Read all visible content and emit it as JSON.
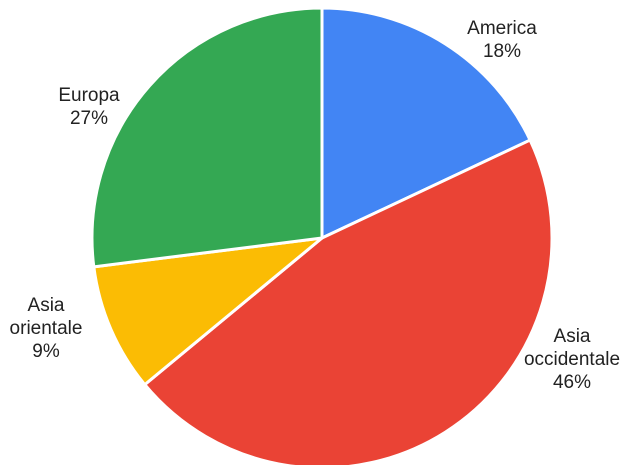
{
  "chart_data": {
    "type": "pie",
    "title": "",
    "start_angle_deg": 0,
    "direction": "clockwise",
    "slices": [
      {
        "label": "America",
        "label_lines": [
          "America"
        ],
        "value": 18,
        "value_text": "18%",
        "color": "#4285F4"
      },
      {
        "label": "Asia occidentale",
        "label_lines": [
          "Asia",
          "occidentale"
        ],
        "value": 46,
        "value_text": "46%",
        "color": "#EA4335"
      },
      {
        "label": "Asia orientale",
        "label_lines": [
          "Asia",
          "orientale"
        ],
        "value": 9,
        "value_text": "9%",
        "color": "#FBBC04"
      },
      {
        "label": "Europa",
        "label_lines": [
          "Europa"
        ],
        "value": 27,
        "value_text": "27%",
        "color": "#34A853"
      }
    ]
  }
}
